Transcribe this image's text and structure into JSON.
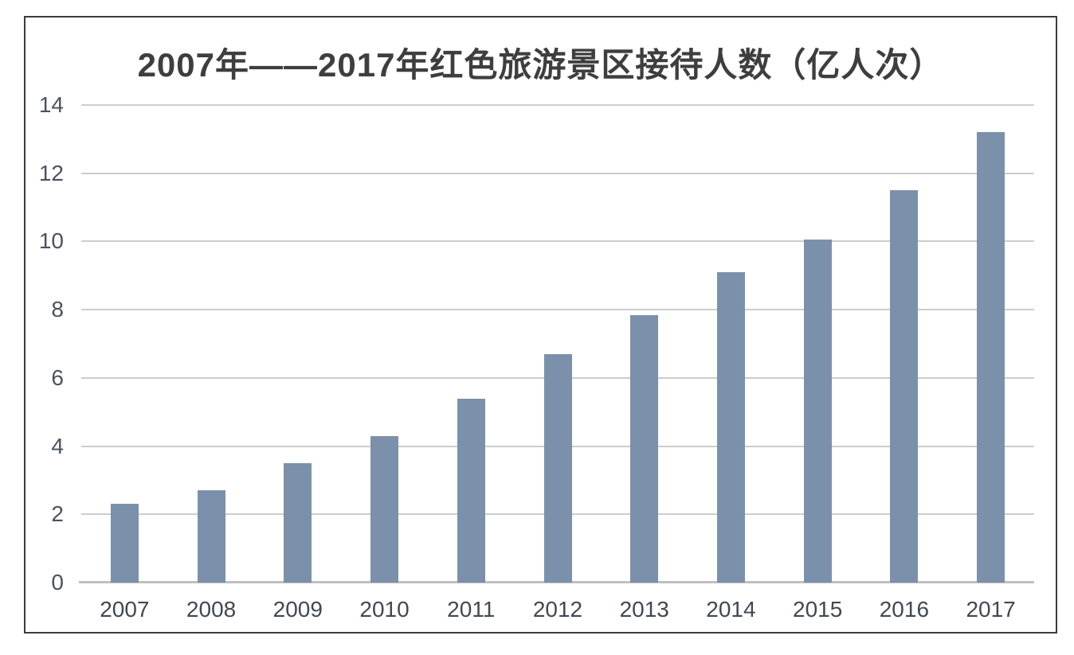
{
  "figure": {
    "background_color": "#ffffff",
    "frame_border_color": "#3c3c3c"
  },
  "chart_data": {
    "type": "bar",
    "title": "2007年——2017年红色旅游景区接待人数（亿人次）",
    "categories": [
      "2007",
      "2008",
      "2009",
      "2010",
      "2011",
      "2012",
      "2013",
      "2014",
      "2015",
      "2016",
      "2017"
    ],
    "values": [
      2.3,
      2.7,
      3.5,
      4.3,
      5.4,
      6.7,
      7.85,
      9.1,
      10.05,
      11.5,
      13.2
    ],
    "xlabel": "",
    "ylabel": "",
    "ylim": [
      0,
      14
    ],
    "yticks": [
      0,
      2,
      4,
      6,
      8,
      10,
      12,
      14
    ],
    "grid": true,
    "legend": "none",
    "bar_color": "#7b90ab",
    "gridline_color": "#cccccc",
    "axis_line_color": "#c0c0c0",
    "y_tick_label_color": "#4a5260",
    "x_tick_label_color": "#414853",
    "title_color": "#3e3e3e"
  }
}
